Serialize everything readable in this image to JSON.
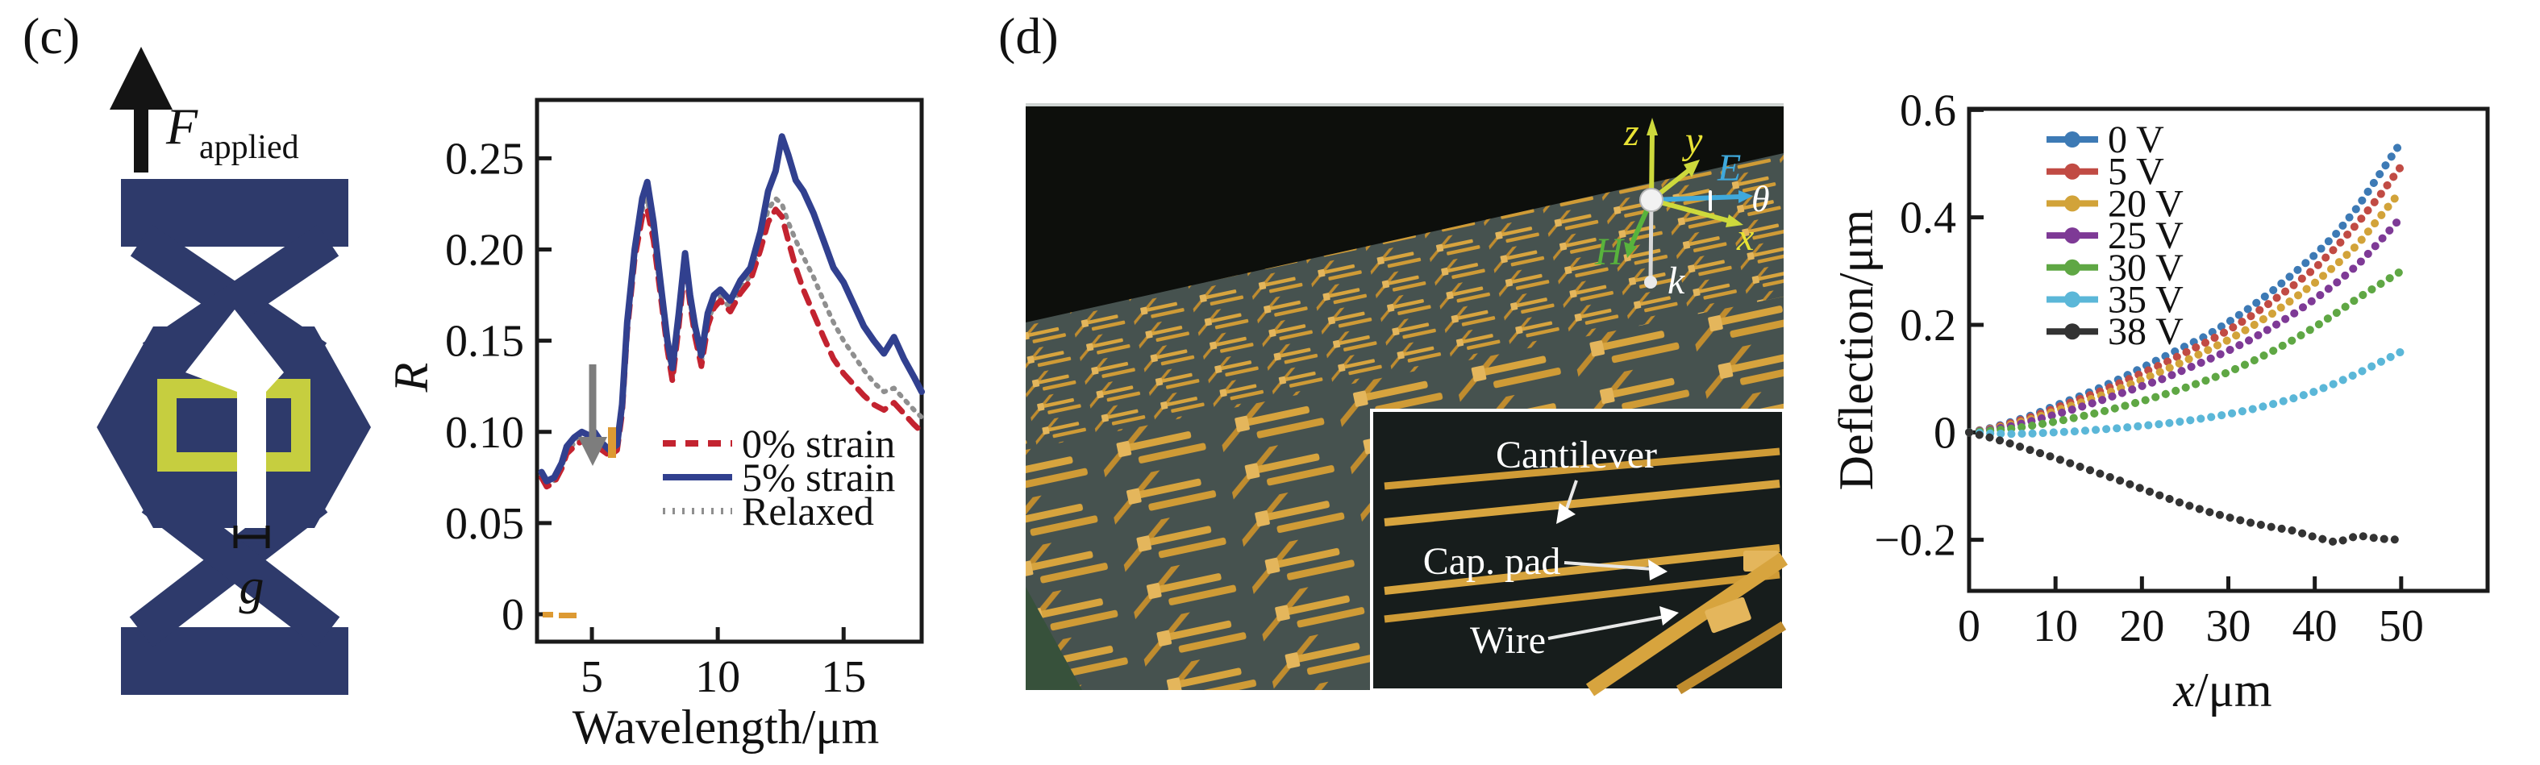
{
  "figure": {
    "panel_c_label": "(c)",
    "panel_d_label": "(d)"
  },
  "panel_c": {
    "schematic": {
      "force_main": "F",
      "force_sub": "applied",
      "gap_label": "g",
      "navy": "#2e3a6b",
      "yellow": "#c6ce3f"
    }
  },
  "panel_d": {
    "photo": {
      "axis_labels": {
        "z": "z",
        "y": "y",
        "E": "E",
        "theta": "θ",
        "x": "x",
        "H": "H",
        "k": "k"
      },
      "inset_labels": {
        "cantilever": "Cantilever",
        "cap_pad": "Cap. pad",
        "wire": "Wire"
      },
      "axis_colors": {
        "yellow": "#e8e234",
        "cyan": "#3fa9dc",
        "green": "#58b33c",
        "white": "#ffffff"
      }
    }
  },
  "chart_data": [
    {
      "type": "line",
      "title": "",
      "xlabel": "Wavelength/μm",
      "ylabel": "R",
      "xlim": [
        2.82,
        18.1
      ],
      "ylim": [
        -0.015,
        0.282
      ],
      "grid": false,
      "legend_position": "inside lower right",
      "x_ticks": [
        {
          "v": 5,
          "label": "5"
        },
        {
          "v": 10,
          "label": "10"
        },
        {
          "v": 15,
          "label": "15"
        }
      ],
      "y_ticks": [
        {
          "v": 0,
          "label": "0"
        },
        {
          "v": 0.05,
          "label": "0.05"
        },
        {
          "v": 0.1,
          "label": "0.10"
        },
        {
          "v": 0.15,
          "label": "0.15"
        },
        {
          "v": 0.2,
          "label": "0.20"
        },
        {
          "v": 0.25,
          "label": "0.25"
        }
      ],
      "x": [
        3.0,
        3.2,
        3.5,
        3.8,
        4.0,
        4.3,
        4.6,
        4.9,
        5.1,
        5.4,
        5.7,
        6.0,
        6.2,
        6.4,
        6.7,
        7.0,
        7.2,
        7.45,
        7.7,
        8.0,
        8.2,
        8.45,
        8.7,
        8.9,
        9.1,
        9.35,
        9.6,
        9.85,
        10.1,
        10.5,
        10.9,
        11.3,
        11.7,
        12.0,
        12.3,
        12.55,
        12.8,
        13.1,
        13.4,
        13.8,
        14.2,
        14.6,
        15.0,
        15.4,
        15.8,
        16.2,
        16.6,
        17.0,
        17.4,
        17.8,
        18.1
      ],
      "series": [
        {
          "name": "0% strain",
          "color": "#c32330",
          "dash": "16 12",
          "width": 7,
          "values": [
            0.075,
            0.07,
            0.072,
            0.08,
            0.088,
            0.092,
            0.095,
            0.093,
            0.095,
            0.09,
            0.087,
            0.09,
            0.11,
            0.155,
            0.195,
            0.218,
            0.222,
            0.205,
            0.178,
            0.145,
            0.128,
            0.158,
            0.192,
            0.17,
            0.152,
            0.136,
            0.158,
            0.168,
            0.172,
            0.166,
            0.176,
            0.183,
            0.2,
            0.215,
            0.222,
            0.218,
            0.205,
            0.19,
            0.178,
            0.165,
            0.152,
            0.14,
            0.132,
            0.126,
            0.12,
            0.115,
            0.112,
            0.116,
            0.11,
            0.104,
            0.1
          ]
        },
        {
          "name": "5% strain",
          "color": "#31408f",
          "dash": "",
          "width": 8,
          "values": [
            0.078,
            0.073,
            0.075,
            0.083,
            0.092,
            0.097,
            0.1,
            0.098,
            0.1,
            0.094,
            0.09,
            0.093,
            0.115,
            0.16,
            0.2,
            0.228,
            0.237,
            0.215,
            0.185,
            0.15,
            0.135,
            0.165,
            0.198,
            0.175,
            0.158,
            0.142,
            0.165,
            0.175,
            0.178,
            0.172,
            0.183,
            0.19,
            0.21,
            0.232,
            0.243,
            0.262,
            0.252,
            0.238,
            0.232,
            0.22,
            0.205,
            0.19,
            0.182,
            0.17,
            0.158,
            0.15,
            0.143,
            0.152,
            0.14,
            0.13,
            0.122
          ]
        },
        {
          "name": "Relaxed",
          "color": "#8f8f8f",
          "dash": "3 9",
          "width": 6,
          "values": [
            0.076,
            0.071,
            0.073,
            0.081,
            0.089,
            0.094,
            0.097,
            0.095,
            0.097,
            0.091,
            0.088,
            0.091,
            0.112,
            0.157,
            0.197,
            0.222,
            0.228,
            0.208,
            0.18,
            0.147,
            0.13,
            0.16,
            0.194,
            0.172,
            0.154,
            0.138,
            0.16,
            0.17,
            0.174,
            0.168,
            0.178,
            0.186,
            0.204,
            0.222,
            0.228,
            0.225,
            0.215,
            0.205,
            0.196,
            0.185,
            0.172,
            0.16,
            0.15,
            0.142,
            0.134,
            0.127,
            0.122,
            0.124,
            0.118,
            0.112,
            0.108
          ]
        }
      ],
      "annotations": {
        "gray_arrow_wavelength": 5.0
      }
    },
    {
      "type": "line",
      "title": "",
      "xlabel_italic": "x",
      "xlabel_rest": "/μm",
      "ylabel": "Deflection/μm",
      "xlim": [
        0,
        60
      ],
      "ylim": [
        -0.295,
        0.602
      ],
      "grid": false,
      "legend_position": "inside upper left",
      "x_ticks": [
        {
          "v": 0,
          "label": "0"
        },
        {
          "v": 10,
          "label": "10"
        },
        {
          "v": 20,
          "label": "20"
        },
        {
          "v": 30,
          "label": "30"
        },
        {
          "v": 40,
          "label": "40"
        },
        {
          "v": 50,
          "label": "50"
        }
      ],
      "y_ticks": [
        {
          "v": -0.2,
          "label": "−0.2"
        },
        {
          "v": 0,
          "label": "0"
        },
        {
          "v": 0.2,
          "label": "0.2"
        },
        {
          "v": 0.4,
          "label": "0.4"
        },
        {
          "v": 0.6,
          "label": "0.6"
        }
      ],
      "x": [
        0,
        2.5,
        5,
        7.5,
        10,
        12.5,
        15,
        17.5,
        20,
        22.5,
        25,
        27.5,
        30,
        32.5,
        35,
        37.5,
        40,
        42.5,
        45,
        47.5,
        50
      ],
      "series": [
        {
          "name": "0 V",
          "color": "#3d7ab5",
          "values": [
            0,
            0.008,
            0.02,
            0.033,
            0.05,
            0.065,
            0.082,
            0.1,
            0.12,
            0.14,
            0.16,
            0.18,
            0.205,
            0.232,
            0.262,
            0.295,
            0.33,
            0.37,
            0.42,
            0.48,
            0.54
          ]
        },
        {
          "name": "5 V",
          "color": "#c14b44",
          "values": [
            0,
            0.007,
            0.018,
            0.03,
            0.045,
            0.06,
            0.075,
            0.092,
            0.11,
            0.128,
            0.148,
            0.168,
            0.19,
            0.215,
            0.243,
            0.273,
            0.305,
            0.345,
            0.39,
            0.44,
            0.495
          ]
        },
        {
          "name": "20 V",
          "color": "#d2a339",
          "values": [
            0,
            0.006,
            0.015,
            0.026,
            0.04,
            0.053,
            0.067,
            0.082,
            0.098,
            0.115,
            0.133,
            0.152,
            0.172,
            0.195,
            0.22,
            0.248,
            0.278,
            0.312,
            0.35,
            0.4,
            0.45
          ]
        },
        {
          "name": "25 V",
          "color": "#7e3a96",
          "values": [
            0,
            0.005,
            0.012,
            0.022,
            0.033,
            0.045,
            0.058,
            0.072,
            0.086,
            0.1,
            0.117,
            0.134,
            0.152,
            0.172,
            0.195,
            0.22,
            0.248,
            0.278,
            0.312,
            0.355,
            0.4
          ]
        },
        {
          "name": "30 V",
          "color": "#5fa744",
          "values": [
            0,
            0.003,
            0.007,
            0.013,
            0.02,
            0.028,
            0.037,
            0.047,
            0.058,
            0.07,
            0.083,
            0.097,
            0.112,
            0.13,
            0.15,
            0.172,
            0.196,
            0.222,
            0.25,
            0.275,
            0.3
          ]
        },
        {
          "name": "35 V",
          "color": "#5bb7d8",
          "values": [
            0,
            -0.002,
            -0.003,
            -0.002,
            0,
            0.002,
            0.005,
            0.008,
            0.012,
            0.016,
            0.021,
            0.027,
            0.034,
            0.042,
            0.052,
            0.063,
            0.076,
            0.092,
            0.11,
            0.13,
            0.15
          ]
        },
        {
          "name": "38 V",
          "color": "#333333",
          "values": [
            0,
            -0.01,
            -0.022,
            -0.035,
            -0.048,
            -0.062,
            -0.076,
            -0.09,
            -0.105,
            -0.12,
            -0.134,
            -0.147,
            -0.158,
            -0.168,
            -0.176,
            -0.183,
            -0.195,
            -0.205,
            -0.192,
            -0.198,
            -0.2
          ]
        }
      ]
    }
  ]
}
